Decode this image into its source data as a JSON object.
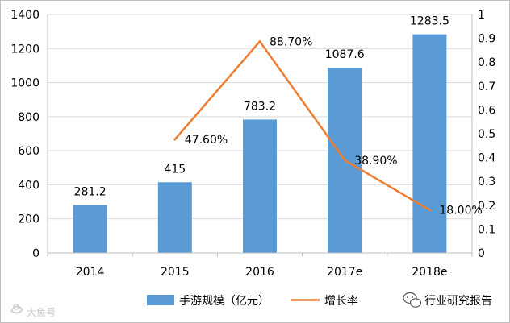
{
  "chart_data": {
    "type": "bar+line",
    "categories": [
      "2014",
      "2015",
      "2016",
      "2017e",
      "2018e"
    ],
    "series": [
      {
        "name": "手游规模（亿元）",
        "type": "bar",
        "axis": "left",
        "values": [
          281.2,
          415,
          783.2,
          1087.6,
          1283.5
        ],
        "labels": [
          "281.2",
          "415",
          "783.2",
          "1087.6",
          "1283.5"
        ],
        "color": "#5b9bd5"
      },
      {
        "name": "增长率",
        "type": "line",
        "axis": "right",
        "values": [
          null,
          0.476,
          0.887,
          0.389,
          0.18
        ],
        "labels": [
          "",
          "47.60%",
          "88.70%",
          "38.90%",
          "18.00%"
        ],
        "color": "#ed7d31"
      }
    ],
    "y_left": {
      "min": 0,
      "max": 1400,
      "step": 200,
      "ticks": [
        "0",
        "200",
        "400",
        "600",
        "800",
        "1000",
        "1200",
        "1400"
      ]
    },
    "y_right": {
      "min": 0,
      "max": 1,
      "step": 0.1,
      "ticks": [
        "0",
        "0.1",
        "0.2",
        "0.3",
        "0.4",
        "0.5",
        "0.6",
        "0.7",
        "0.8",
        "0.9",
        "1"
      ]
    },
    "grid": true,
    "legend": "bottom"
  },
  "watermark": {
    "left": "大鱼号",
    "right": "行业研究报告"
  }
}
